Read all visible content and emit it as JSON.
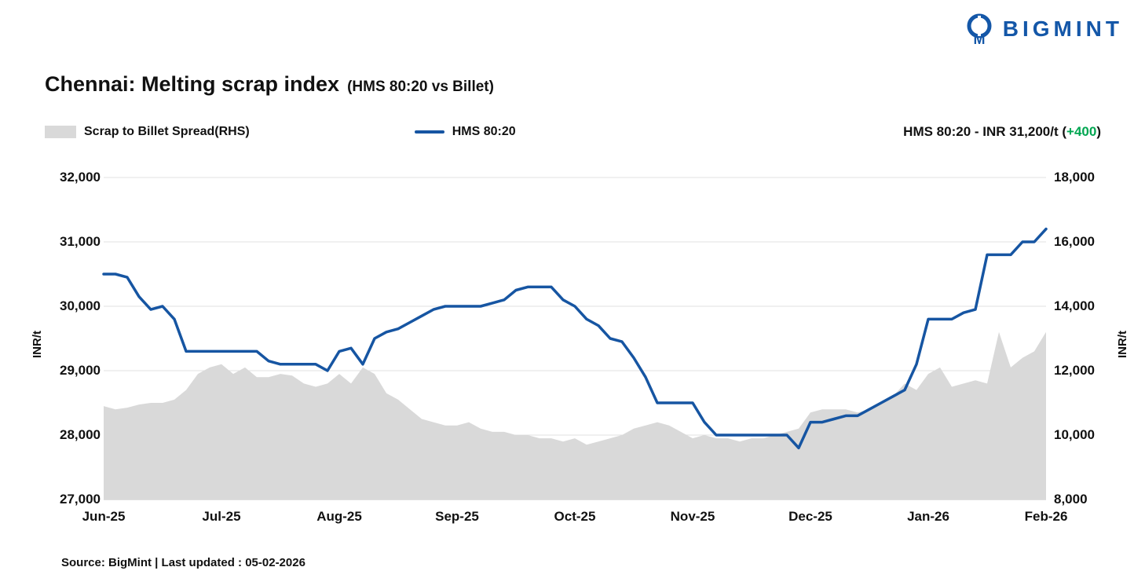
{
  "logo": {
    "text": "BIGMINT",
    "color": "#1457a8"
  },
  "title": {
    "main": "Chennai: Melting scrap index",
    "sub": "(HMS 80:20 vs Billet)"
  },
  "legend": {
    "spread_label": "Scrap to Billet Spread(RHS)",
    "hms_label": "HMS 80:20",
    "spread_color": "#d9d9d9",
    "hms_color": "#1655a2"
  },
  "annotation": {
    "prefix": "HMS 80:20 - INR 31,200/t (",
    "change": "+400",
    "suffix": ")",
    "change_color": "#00a651"
  },
  "footer": {
    "text": "Source: BigMint | Last updated : 05-02-2026"
  },
  "chart_data": {
    "type": "combo",
    "x_note": "81 evenly spaced samples from Jun-25 to Feb-26 (10 per month)",
    "x_labels": [
      "Jun-25",
      "Jul-25",
      "Aug-25",
      "Sep-25",
      "Oct-25",
      "Nov-25",
      "Dec-25",
      "Jan-26",
      "Feb-26"
    ],
    "grid": true,
    "legend_position": "top",
    "left_axis": {
      "label": "INR/t",
      "min": 27000,
      "max": 32000,
      "ticks": [
        {
          "v": 32000,
          "label": "32,000"
        },
        {
          "v": 31000,
          "label": "31,000"
        },
        {
          "v": 30000,
          "label": "30,000"
        },
        {
          "v": 29000,
          "label": "29,000"
        },
        {
          "v": 28000,
          "label": "28,000"
        },
        {
          "v": 27000,
          "label": "27,000"
        }
      ]
    },
    "right_axis": {
      "label": "INR/t",
      "min": 8000,
      "max": 18000,
      "ticks": [
        {
          "v": 18000,
          "label": "18,000"
        },
        {
          "v": 16000,
          "label": "16,000"
        },
        {
          "v": 14000,
          "label": "14,000"
        },
        {
          "v": 12000,
          "label": "12,000"
        },
        {
          "v": 10000,
          "label": "10,000"
        },
        {
          "v": 8000,
          "label": "8,000"
        }
      ]
    },
    "series": [
      {
        "name": "Scrap to Billet Spread(RHS)",
        "type": "area",
        "axis": "right",
        "color": "#d9d9d9",
        "values": [
          10900,
          10800,
          10850,
          10950,
          11000,
          11000,
          11100,
          11400,
          11900,
          12100,
          12200,
          11900,
          12100,
          11800,
          11800,
          11900,
          11850,
          11600,
          11500,
          11600,
          11900,
          11600,
          12100,
          11900,
          11300,
          11100,
          10800,
          10500,
          10400,
          10300,
          10300,
          10400,
          10200,
          10100,
          10100,
          10000,
          10000,
          9900,
          9900,
          9800,
          9900,
          9700,
          9800,
          9900,
          10000,
          10200,
          10300,
          10400,
          10300,
          10100,
          9900,
          10000,
          9900,
          9900,
          9800,
          9900,
          9900,
          10000,
          10100,
          10200,
          10700,
          10800,
          10800,
          10800,
          10700,
          10800,
          11000,
          11200,
          11600,
          11400,
          11900,
          12100,
          11500,
          11600,
          11700,
          11600,
          13200,
          12100,
          12400,
          12600,
          13200
        ]
      },
      {
        "name": "HMS 80:20",
        "type": "line",
        "axis": "left",
        "color": "#1655a2",
        "values": [
          30500,
          30500,
          30450,
          30150,
          29950,
          30000,
          29800,
          29300,
          29300,
          29300,
          29300,
          29300,
          29300,
          29300,
          29150,
          29100,
          29100,
          29100,
          29100,
          29000,
          29300,
          29350,
          29100,
          29500,
          29600,
          29650,
          29750,
          29850,
          29950,
          30000,
          30000,
          30000,
          30000,
          30050,
          30100,
          30250,
          30300,
          30300,
          30300,
          30100,
          30000,
          29800,
          29700,
          29500,
          29450,
          29200,
          28900,
          28500,
          28500,
          28500,
          28500,
          28200,
          28000,
          28000,
          28000,
          28000,
          28000,
          28000,
          28000,
          27800,
          28200,
          28200,
          28250,
          28300,
          28300,
          28400,
          28500,
          28600,
          28700,
          29100,
          29800,
          29800,
          29800,
          29900,
          29950,
          30800,
          30800,
          30800,
          31000,
          31000,
          31200
        ]
      }
    ],
    "latest_value": {
      "series": "HMS 80:20",
      "value": "INR 31,200/t",
      "change": "+400"
    }
  }
}
